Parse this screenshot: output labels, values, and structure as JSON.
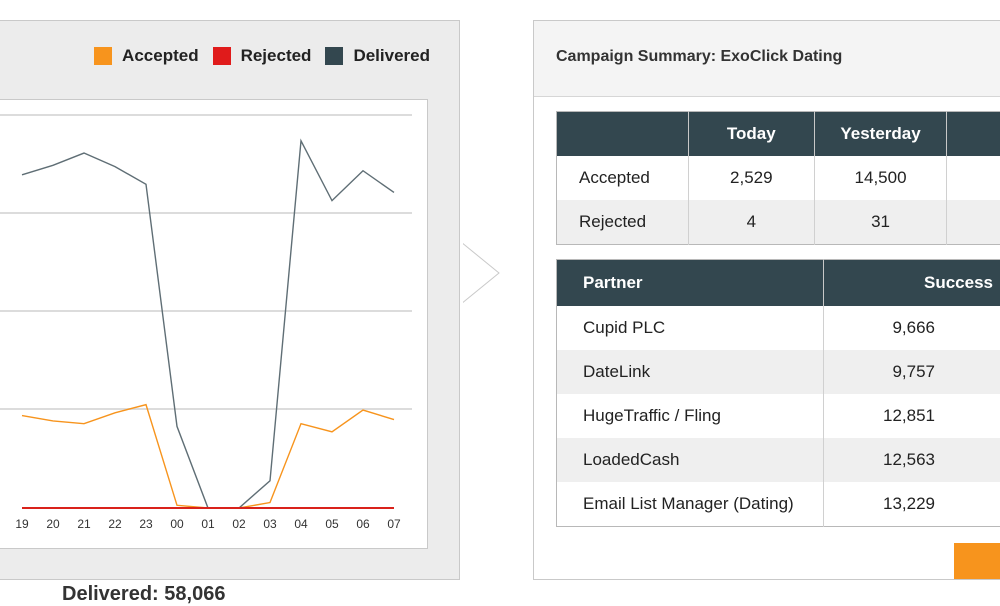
{
  "legend": [
    {
      "label": "Accepted",
      "color": "#f7941d"
    },
    {
      "label": "Rejected",
      "color": "#e01b1b"
    },
    {
      "label": "Delivered",
      "color": "#33474f"
    }
  ],
  "chart_data": {
    "type": "line",
    "x": [
      "19",
      "20",
      "21",
      "22",
      "23",
      "00",
      "01",
      "02",
      "03",
      "04",
      "05",
      "06",
      "07"
    ],
    "series": [
      {
        "name": "Delivered",
        "color": "#5f6e75",
        "values": [
          2450,
          2520,
          2610,
          2510,
          2380,
          600,
          0,
          0,
          200,
          2700,
          2260,
          2480,
          2320
        ]
      },
      {
        "name": "Accepted",
        "color": "#f7941d",
        "values": [
          680,
          640,
          620,
          700,
          760,
          20,
          0,
          0,
          40,
          620,
          560,
          720,
          650
        ]
      },
      {
        "name": "Rejected",
        "color": "#d9221b",
        "values": [
          0,
          0,
          0,
          0,
          0,
          0,
          0,
          0,
          0,
          0,
          0,
          0,
          0
        ]
      }
    ],
    "ylim": [
      0,
      3000
    ],
    "grid": true,
    "legend_position": "top-right"
  },
  "delivered_total": "Delivered: 58,066",
  "summary": {
    "title": "Campaign Summary: ExoClick Dating",
    "stats": {
      "headers": [
        "",
        "Today",
        "Yesterday",
        ""
      ],
      "rows": [
        {
          "label": "Accepted",
          "today": "2,529",
          "yesterday": "14,500"
        },
        {
          "label": "Rejected",
          "today": "4",
          "yesterday": "31"
        }
      ]
    },
    "partners": {
      "headers": [
        "Partner",
        "Success"
      ],
      "rows": [
        {
          "name": "Cupid PLC",
          "success": "9,666"
        },
        {
          "name": "DateLink",
          "success": "9,757"
        },
        {
          "name": "HugeTraffic / Fling",
          "success": "12,851"
        },
        {
          "name": "LoadedCash",
          "success": "12,563"
        },
        {
          "name": "Email List Manager (Dating)",
          "success": "13,229"
        }
      ]
    }
  },
  "action_button": {
    "color": "#f7941d"
  }
}
